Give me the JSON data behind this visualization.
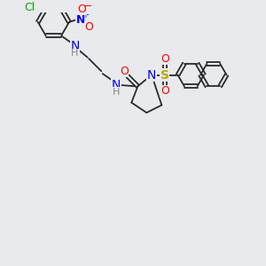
{
  "background_color": "#e8eaed",
  "bond_color": "#2a2a2a",
  "atoms": {
    "Cl": {
      "color": "#00aa00"
    },
    "N": {
      "color": "#0000ff"
    },
    "O": {
      "color": "#ff0000"
    },
    "S": {
      "color": "#bbaa00"
    },
    "H": {
      "color": "#888888"
    }
  },
  "figsize": [
    3.0,
    3.0
  ],
  "dpi": 100
}
